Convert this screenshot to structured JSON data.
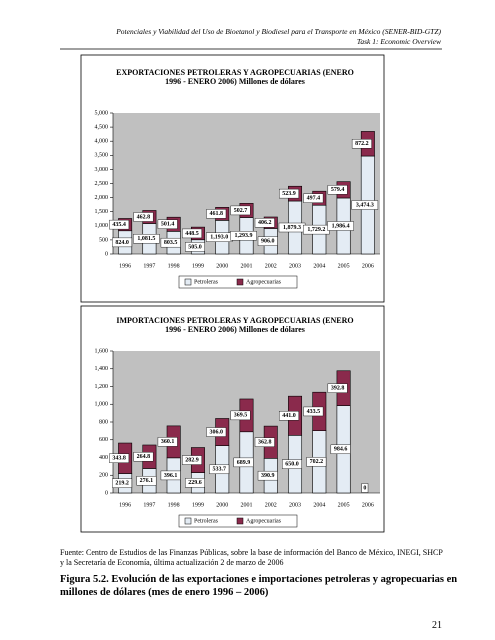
{
  "header": {
    "title": "Potenciales y Viabilidad del Uso de Bioetanol y Biodiesel para el Transporte en México (SENER-BID-GTZ)",
    "subtitle": "Task 1: Economic Overview"
  },
  "chart_data": [
    {
      "type": "bar",
      "stacked": true,
      "title": "EXPORTACIONES PETROLERAS Y AGROPECUARIAS (ENERO 1996 - ENERO 2006) Millones de dólares",
      "categories": [
        "1996",
        "1997",
        "1998",
        "1999",
        "2000",
        "2001",
        "2002",
        "2003",
        "2004",
        "2005",
        "2006"
      ],
      "series": [
        {
          "name": "Petroleras",
          "color": "#e4ecf4",
          "values": [
            824.0,
            1081.5,
            803.5,
            505.0,
            1193.0,
            1293.9,
            906.0,
            1879.3,
            1729.2,
            1986.4,
            3474.3
          ],
          "value_labels": [
            "824.0",
            "1,081.5",
            "803.5",
            "505.0",
            "1,193.0",
            "1,293.9",
            "906.0",
            "1,879.3",
            "1,729.2",
            "1,986.4",
            "3,474.3"
          ]
        },
        {
          "name": "Agropecuarias",
          "color": "#8a2a4c",
          "values": [
            435.4,
            462.8,
            501.4,
            448.5,
            461.8,
            502.7,
            406.2,
            523.9,
            497.4,
            579.4,
            872.2
          ],
          "value_labels": [
            "435.4",
            "462.8",
            "501.4",
            "448.5",
            "461.8",
            "502.7",
            "406.2",
            "523.9",
            "497.4",
            "579.4",
            "872.2"
          ]
        }
      ],
      "ylim": [
        0,
        5000
      ],
      "yticks": [
        0,
        500,
        {
          "value": 1000,
          "label": "1,000"
        },
        {
          "value": 1500,
          "label": "1,500"
        },
        {
          "value": 2000,
          "label": "2,000"
        },
        {
          "value": 2500,
          "label": "2,500"
        },
        {
          "value": 3000,
          "label": "3,000"
        },
        {
          "value": 3500,
          "label": "3,500"
        },
        {
          "value": 4000,
          "label": "4,000"
        },
        {
          "value": 4500,
          "label": "4,500"
        },
        {
          "value": 5000,
          "label": "5,000"
        }
      ]
    },
    {
      "type": "bar",
      "stacked": true,
      "title": "IMPORTACIONES PETROLERAS Y AGROPECUARIAS (ENERO 1996 - ENERO 2006) Millones de dólares",
      "categories": [
        "1996",
        "1997",
        "1998",
        "1999",
        "2000",
        "2001",
        "2002",
        "2003",
        "2004",
        "2005",
        "2006"
      ],
      "series": [
        {
          "name": "Petroleras",
          "color": "#e4ecf4",
          "values": [
            219.2,
            276.1,
            396.1,
            229.6,
            533.7,
            689.9,
            390.9,
            650.0,
            702.2,
            984.6,
            0
          ],
          "value_labels": [
            "219.2",
            "276.1",
            "396.1",
            "229.6",
            "533.7",
            "689.9",
            "390.9",
            "650.0",
            "702.2",
            "984.6",
            "0"
          ]
        },
        {
          "name": "Agropecuarias",
          "color": "#8a2a4c",
          "values": [
            343.8,
            264.8,
            360.1,
            282.9,
            306.0,
            369.5,
            362.8,
            441.0,
            433.5,
            392.8,
            null
          ],
          "value_labels": [
            "343.8",
            "264.8",
            "360.1",
            "282.9",
            "306.0",
            "369.5",
            "362.8",
            "441.0",
            "433.5",
            "392.8",
            null
          ]
        }
      ],
      "ylim": [
        0,
        1600
      ],
      "yticks": [
        0,
        200,
        400,
        600,
        800,
        {
          "value": 1000,
          "label": "1,000"
        },
        {
          "value": 1200,
          "label": "1,200"
        },
        {
          "value": 1400,
          "label": "1,400"
        },
        {
          "value": 1600,
          "label": "1,600"
        }
      ]
    }
  ],
  "source": "Fuente: Centro de Estudios de las Finanzas Públicas, sobre la base de información del Banco de México, INEGI, SHCP y la Secretaría de Economía, última actualización 2 de marzo de 2006",
  "caption": "Figura 5.2. Evolución de las exportaciones e importaciones petroleras y agropecuarias en millones de dólares (mes de enero 1996 – 2006)",
  "page_number": "21"
}
